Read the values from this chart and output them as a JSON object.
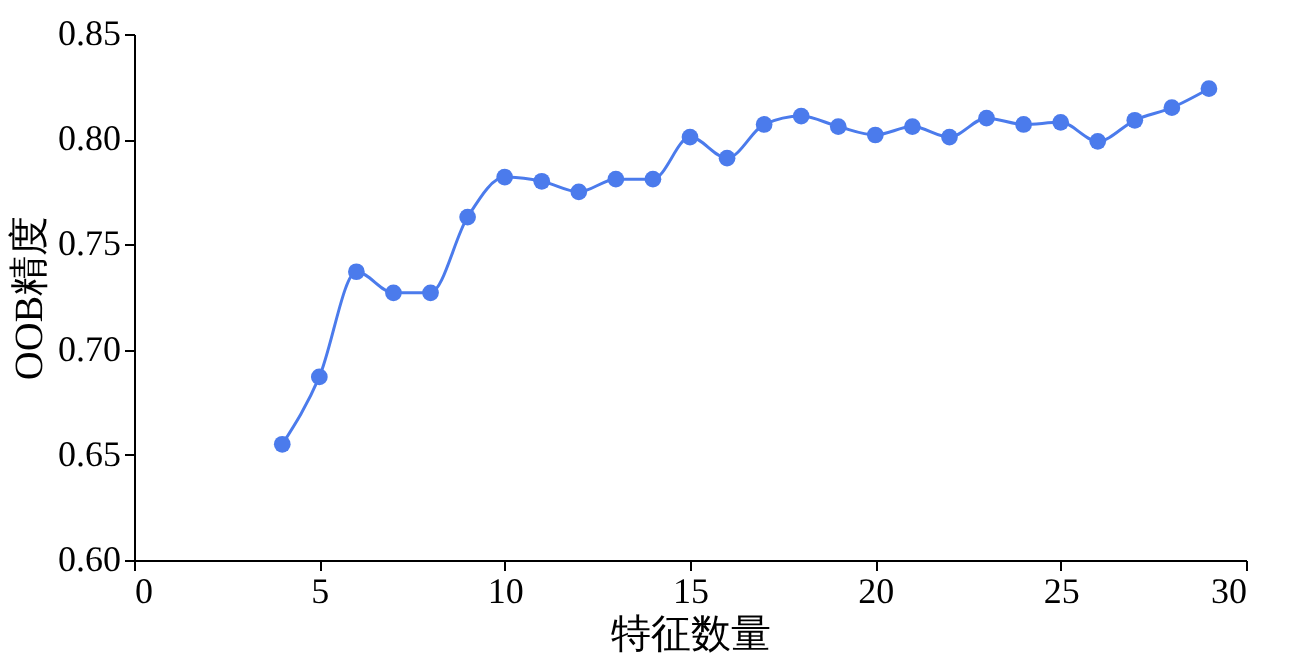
{
  "chart_data": {
    "type": "line",
    "xlabel": "特征数量",
    "ylabel": "OOB精度",
    "x": [
      4,
      5,
      6,
      7,
      8,
      9,
      10,
      11,
      12,
      13,
      14,
      15,
      16,
      17,
      18,
      19,
      20,
      21,
      22,
      23,
      24,
      25,
      26,
      27,
      28,
      29
    ],
    "series": [
      {
        "color": "#4b7bec",
        "values": [
          0.655,
          0.687,
          0.737,
          0.727,
          0.727,
          0.763,
          0.782,
          0.78,
          0.775,
          0.781,
          0.781,
          0.801,
          0.791,
          0.807,
          0.811,
          0.806,
          0.802,
          0.806,
          0.801,
          0.81,
          0.807,
          0.808,
          0.799,
          0.809,
          0.815,
          0.824
        ]
      }
    ],
    "xlim": [
      0,
      30
    ],
    "xticks": [
      0,
      5,
      10,
      15,
      20,
      25,
      30
    ],
    "ylim": [
      0.6,
      0.85
    ],
    "yticks": [
      {
        "value": 0.6,
        "label": "0.60"
      },
      {
        "value": 0.65,
        "label": "0.65"
      },
      {
        "value": 0.7,
        "label": "0.70"
      },
      {
        "value": 0.75,
        "label": "0.75"
      },
      {
        "value": 0.8,
        "label": "0.80"
      },
      {
        "value": 0.85,
        "label": "0.85"
      }
    ],
    "grid": false,
    "legend": false,
    "marker": "circle",
    "line_style": "solid"
  }
}
